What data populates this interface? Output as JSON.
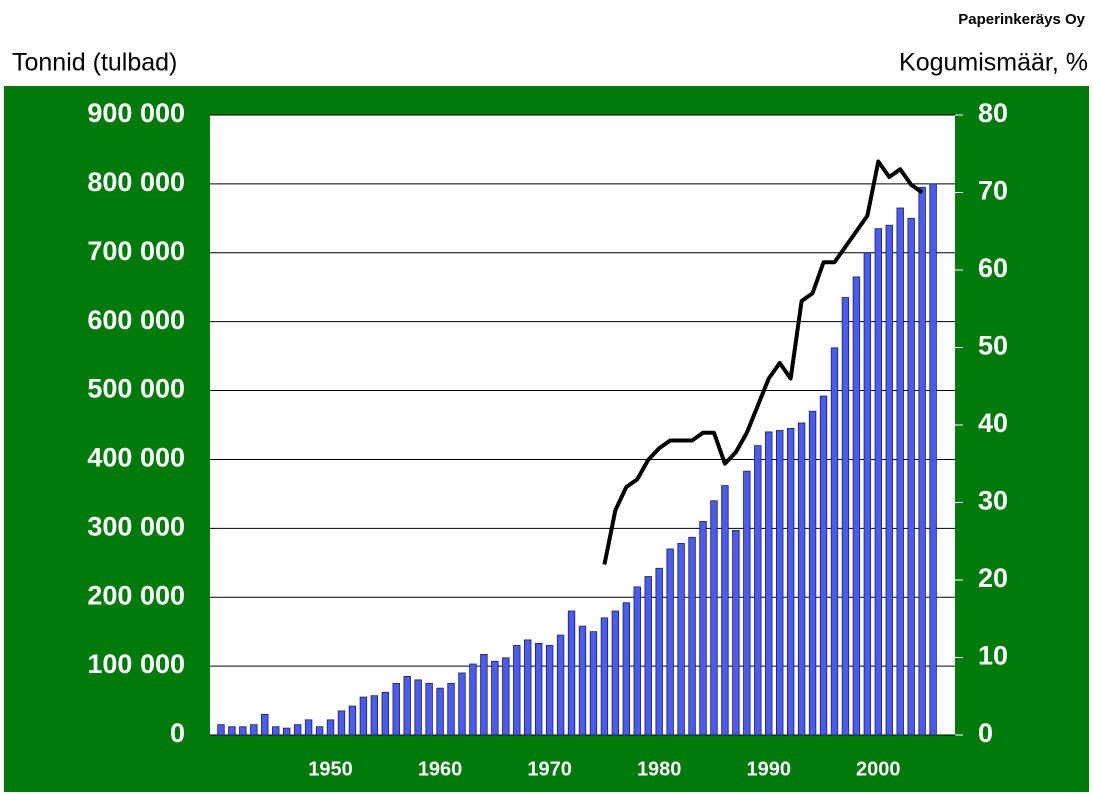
{
  "chart_data": {
    "type": "bar_line",
    "source": "Paperinkeräys Oy",
    "ylabel": "Tonnid (tulbad)",
    "y2label": "Kogumismäär, %",
    "xlim": [
      1939,
      2007
    ],
    "xticks": [
      1950,
      1960,
      1970,
      1980,
      1990,
      2000
    ],
    "ylim": [
      0,
      900000
    ],
    "yticks": [
      0,
      {
        "value": 100000,
        "label": "100 000"
      },
      {
        "value": 200000,
        "label": "200 000"
      },
      {
        "value": 300000,
        "label": "300 000"
      },
      {
        "value": 400000,
        "label": "400 000"
      },
      {
        "value": 500000,
        "label": "500 000"
      },
      {
        "value": 600000,
        "label": "600 000"
      },
      {
        "value": 700000,
        "label": "700 000"
      },
      {
        "value": 800000,
        "label": "800 000"
      },
      {
        "value": 900000,
        "label": "900 000"
      }
    ],
    "y2lim": [
      0,
      80
    ],
    "y2ticks": [
      0,
      10,
      20,
      30,
      40,
      50,
      60,
      70,
      80
    ],
    "grid": true,
    "series": [
      {
        "kind": "bar",
        "color": "#4a5cf0",
        "axis": "y",
        "x": [
          1940,
          1941,
          1942,
          1943,
          1944,
          1945,
          1946,
          1947,
          1948,
          1949,
          1950,
          1951,
          1952,
          1953,
          1954,
          1955,
          1956,
          1957,
          1958,
          1959,
          1960,
          1961,
          1962,
          1963,
          1964,
          1965,
          1966,
          1967,
          1968,
          1969,
          1970,
          1971,
          1972,
          1973,
          1974,
          1975,
          1976,
          1977,
          1978,
          1979,
          1980,
          1981,
          1982,
          1983,
          1984,
          1985,
          1986,
          1987,
          1988,
          1989,
          1990,
          1991,
          1992,
          1993,
          1994,
          1995,
          1996,
          1997,
          1998,
          1999,
          2000,
          2001,
          2002,
          2003,
          2004,
          2005
        ],
        "values": [
          15000,
          12000,
          12000,
          15000,
          30000,
          12000,
          10000,
          15000,
          22000,
          12000,
          22000,
          35000,
          42000,
          55000,
          57000,
          62000,
          75000,
          85000,
          80000,
          75000,
          68000,
          75000,
          90000,
          103000,
          117000,
          107000,
          112000,
          130000,
          138000,
          133000,
          130000,
          145000,
          180000,
          158000,
          150000,
          170000,
          180000,
          192000,
          215000,
          230000,
          242000,
          270000,
          278000,
          287000,
          310000,
          340000,
          362000,
          297000,
          383000,
          420000,
          440000,
          442000,
          445000,
          453000,
          470000,
          492000,
          562000,
          635000,
          665000,
          700000,
          735000,
          740000,
          765000,
          750000,
          795000,
          800000
        ]
      },
      {
        "kind": "line",
        "color": "#000000",
        "axis": "y2",
        "x": [
          1975,
          1976,
          1977,
          1978,
          1979,
          1980,
          1981,
          1982,
          1983,
          1984,
          1985,
          1986,
          1987,
          1988,
          1989,
          1990,
          1991,
          1992,
          1993,
          1994,
          1995,
          1996,
          1997,
          1998,
          1999,
          2000,
          2001,
          2002,
          2003,
          2004
        ],
        "values": [
          22,
          29,
          32,
          33,
          35.5,
          37,
          38,
          38,
          38,
          39,
          39,
          35,
          36.5,
          39,
          42.5,
          46,
          48,
          46,
          56,
          57,
          61,
          61,
          63,
          65,
          67,
          74,
          72,
          73,
          71,
          70
        ]
      }
    ]
  }
}
